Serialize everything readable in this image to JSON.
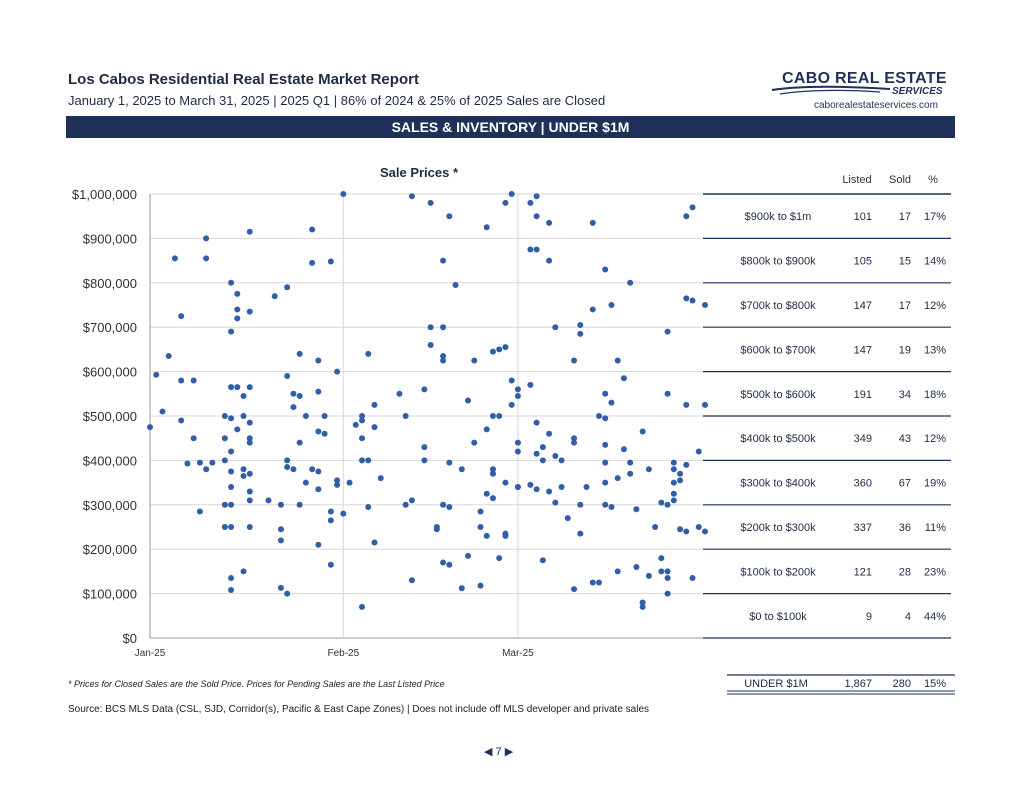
{
  "header": {
    "title": "Los Cabos Residential Real Estate Market Report",
    "subtitle": "January 1, 2025 to March 31, 2025 | 2025 Q1 | 86% of 2024 & 25% of 2025 Sales are Closed",
    "logo_line1": "CABO REAL ESTATE",
    "logo_line2": "SERVICES",
    "logo_url": "caborealestateservices.com",
    "banner": "SALES & INVENTORY | UNDER $1M"
  },
  "colors": {
    "navy": "#1f3158",
    "point": "#2f5fa7",
    "grid": "#d9d9d9"
  },
  "chart_data": {
    "type": "scatter",
    "title": "Sale Prices *",
    "xlabel": "",
    "ylabel": "",
    "x_ticks": [
      {
        "label": "Jan-25",
        "day": 0
      },
      {
        "label": "Feb-25",
        "day": 31
      },
      {
        "label": "Mar-25",
        "day": 59
      }
    ],
    "xlim_days": [
      0,
      89
    ],
    "ylim": [
      0,
      1000000
    ],
    "y_ticks": [
      0,
      100000,
      200000,
      300000,
      400000,
      500000,
      600000,
      700000,
      800000,
      900000,
      1000000
    ],
    "y_tick_labels": [
      "$0",
      "$100,000",
      "$200,000",
      "$300,000",
      "$400,000",
      "$500,000",
      "$600,000",
      "$700,000",
      "$800,000",
      "$900,000",
      "$1,000,000"
    ],
    "grid": true,
    "points": [
      [
        0,
        475000
      ],
      [
        1,
        593000
      ],
      [
        2,
        510000
      ],
      [
        3,
        635000
      ],
      [
        4,
        855000
      ],
      [
        5,
        725000
      ],
      [
        5,
        580000
      ],
      [
        5,
        490000
      ],
      [
        6,
        393000
      ],
      [
        7,
        580000
      ],
      [
        7,
        450000
      ],
      [
        8,
        285000
      ],
      [
        8,
        395000
      ],
      [
        9,
        900000
      ],
      [
        9,
        855000
      ],
      [
        9,
        380000
      ],
      [
        10,
        395000
      ],
      [
        12,
        500000
      ],
      [
        12,
        450000
      ],
      [
        12,
        400000
      ],
      [
        12,
        300000
      ],
      [
        12,
        250000
      ],
      [
        13,
        800000
      ],
      [
        13,
        690000
      ],
      [
        13,
        565000
      ],
      [
        13,
        495000
      ],
      [
        13,
        420000
      ],
      [
        13,
        375000
      ],
      [
        13,
        340000
      ],
      [
        13,
        300000
      ],
      [
        13,
        250000
      ],
      [
        13,
        135000
      ],
      [
        13,
        108000
      ],
      [
        14,
        775000
      ],
      [
        14,
        740000
      ],
      [
        14,
        720000
      ],
      [
        14,
        565000
      ],
      [
        14,
        470000
      ],
      [
        15,
        545000
      ],
      [
        15,
        500000
      ],
      [
        15,
        380000
      ],
      [
        15,
        365000
      ],
      [
        15,
        150000
      ],
      [
        16,
        915000
      ],
      [
        16,
        735000
      ],
      [
        16,
        565000
      ],
      [
        16,
        485000
      ],
      [
        16,
        450000
      ],
      [
        16,
        440000
      ],
      [
        16,
        370000
      ],
      [
        16,
        330000
      ],
      [
        16,
        310000
      ],
      [
        16,
        250000
      ],
      [
        19,
        310000
      ],
      [
        20,
        770000
      ],
      [
        21,
        300000
      ],
      [
        21,
        245000
      ],
      [
        21,
        220000
      ],
      [
        21,
        113000
      ],
      [
        22,
        790000
      ],
      [
        22,
        590000
      ],
      [
        22,
        400000
      ],
      [
        22,
        385000
      ],
      [
        22,
        100000
      ],
      [
        23,
        550000
      ],
      [
        23,
        520000
      ],
      [
        23,
        380000
      ],
      [
        24,
        640000
      ],
      [
        24,
        545000
      ],
      [
        24,
        440000
      ],
      [
        24,
        300000
      ],
      [
        25,
        500000
      ],
      [
        25,
        350000
      ],
      [
        26,
        920000
      ],
      [
        26,
        845000
      ],
      [
        26,
        380000
      ],
      [
        27,
        625000
      ],
      [
        27,
        555000
      ],
      [
        27,
        465000
      ],
      [
        27,
        375000
      ],
      [
        27,
        335000
      ],
      [
        27,
        210000
      ],
      [
        28,
        500000
      ],
      [
        28,
        460000
      ],
      [
        29,
        848000
      ],
      [
        29,
        285000
      ],
      [
        29,
        265000
      ],
      [
        29,
        165000
      ],
      [
        30,
        600000
      ],
      [
        30,
        355000
      ],
      [
        30,
        345000
      ],
      [
        31,
        1000000
      ],
      [
        31,
        280000
      ],
      [
        32,
        350000
      ],
      [
        33,
        480000
      ],
      [
        34,
        500000
      ],
      [
        34,
        490000
      ],
      [
        34,
        450000
      ],
      [
        34,
        400000
      ],
      [
        34,
        70000
      ],
      [
        35,
        640000
      ],
      [
        35,
        400000
      ],
      [
        35,
        295000
      ],
      [
        36,
        525000
      ],
      [
        36,
        475000
      ],
      [
        36,
        215000
      ],
      [
        37,
        360000
      ],
      [
        40,
        550000
      ],
      [
        41,
        500000
      ],
      [
        41,
        300000
      ],
      [
        42,
        995000
      ],
      [
        42,
        310000
      ],
      [
        42,
        130000
      ],
      [
        44,
        430000
      ],
      [
        44,
        400000
      ],
      [
        44,
        560000
      ],
      [
        45,
        980000
      ],
      [
        45,
        700000
      ],
      [
        45,
        660000
      ],
      [
        46,
        245000
      ],
      [
        46,
        250000
      ],
      [
        47,
        850000
      ],
      [
        47,
        700000
      ],
      [
        47,
        635000
      ],
      [
        47,
        625000
      ],
      [
        47,
        300000
      ],
      [
        47,
        170000
      ],
      [
        48,
        950000
      ],
      [
        48,
        395000
      ],
      [
        48,
        295000
      ],
      [
        48,
        165000
      ],
      [
        49,
        795000
      ],
      [
        50,
        380000
      ],
      [
        50,
        112000
      ],
      [
        51,
        535000
      ],
      [
        51,
        185000
      ],
      [
        52,
        625000
      ],
      [
        52,
        440000
      ],
      [
        53,
        285000
      ],
      [
        53,
        250000
      ],
      [
        53,
        118000
      ],
      [
        54,
        925000
      ],
      [
        54,
        470000
      ],
      [
        54,
        325000
      ],
      [
        54,
        230000
      ],
      [
        55,
        645000
      ],
      [
        55,
        500000
      ],
      [
        55,
        380000
      ],
      [
        55,
        370000
      ],
      [
        55,
        315000
      ],
      [
        56,
        650000
      ],
      [
        56,
        500000
      ],
      [
        56,
        180000
      ],
      [
        57,
        980000
      ],
      [
        57,
        655000
      ],
      [
        57,
        350000
      ],
      [
        57,
        235000
      ],
      [
        57,
        230000
      ],
      [
        58,
        1000000
      ],
      [
        58,
        580000
      ],
      [
        58,
        525000
      ],
      [
        59,
        560000
      ],
      [
        59,
        545000
      ],
      [
        59,
        440000
      ],
      [
        59,
        420000
      ],
      [
        59,
        340000
      ],
      [
        59,
        340000
      ],
      [
        61,
        875000
      ],
      [
        61,
        980000
      ],
      [
        61,
        570000
      ],
      [
        61,
        345000
      ],
      [
        62,
        875000
      ],
      [
        62,
        995000
      ],
      [
        62,
        950000
      ],
      [
        62,
        485000
      ],
      [
        62,
        415000
      ],
      [
        62,
        335000
      ],
      [
        63,
        400000
      ],
      [
        63,
        175000
      ],
      [
        63,
        430000
      ],
      [
        64,
        935000
      ],
      [
        64,
        850000
      ],
      [
        64,
        460000
      ],
      [
        64,
        330000
      ],
      [
        65,
        410000
      ],
      [
        65,
        700000
      ],
      [
        65,
        305000
      ],
      [
        66,
        400000
      ],
      [
        66,
        340000
      ],
      [
        67,
        270000
      ],
      [
        68,
        625000
      ],
      [
        68,
        450000
      ],
      [
        68,
        440000
      ],
      [
        68,
        110000
      ],
      [
        69,
        705000
      ],
      [
        69,
        685000
      ],
      [
        69,
        300000
      ],
      [
        69,
        235000
      ],
      [
        70,
        340000
      ],
      [
        71,
        935000
      ],
      [
        71,
        740000
      ],
      [
        71,
        125000
      ],
      [
        72,
        500000
      ],
      [
        72,
        125000
      ],
      [
        73,
        830000
      ],
      [
        73,
        550000
      ],
      [
        73,
        495000
      ],
      [
        73,
        435000
      ],
      [
        73,
        395000
      ],
      [
        73,
        350000
      ],
      [
        73,
        300000
      ],
      [
        74,
        750000
      ],
      [
        74,
        530000
      ],
      [
        74,
        295000
      ],
      [
        75,
        625000
      ],
      [
        75,
        360000
      ],
      [
        75,
        150000
      ],
      [
        76,
        585000
      ],
      [
        76,
        425000
      ],
      [
        77,
        800000
      ],
      [
        77,
        395000
      ],
      [
        77,
        370000
      ],
      [
        78,
        290000
      ],
      [
        78,
        160000
      ],
      [
        79,
        465000
      ],
      [
        79,
        80000
      ],
      [
        79,
        70000
      ],
      [
        80,
        380000
      ],
      [
        80,
        140000
      ],
      [
        81,
        250000
      ],
      [
        82,
        305000
      ],
      [
        82,
        180000
      ],
      [
        82,
        150000
      ],
      [
        83,
        690000
      ],
      [
        83,
        550000
      ],
      [
        83,
        300000
      ],
      [
        83,
        150000
      ],
      [
        83,
        135000
      ],
      [
        83,
        100000
      ],
      [
        84,
        395000
      ],
      [
        84,
        380000
      ],
      [
        84,
        350000
      ],
      [
        84,
        325000
      ],
      [
        84,
        310000
      ],
      [
        85,
        370000
      ],
      [
        85,
        355000
      ],
      [
        85,
        245000
      ],
      [
        86,
        950000
      ],
      [
        86,
        765000
      ],
      [
        86,
        525000
      ],
      [
        86,
        390000
      ],
      [
        86,
        240000
      ],
      [
        87,
        970000
      ],
      [
        87,
        760000
      ],
      [
        87,
        135000
      ],
      [
        88,
        420000
      ],
      [
        88,
        250000
      ],
      [
        89,
        750000
      ],
      [
        89,
        525000
      ],
      [
        89,
        240000
      ]
    ]
  },
  "table": {
    "headers": [
      "Listed",
      "Sold",
      "%"
    ],
    "rows": [
      {
        "range": "$900k to $1m",
        "listed": "101",
        "sold": "17",
        "pct": "17%"
      },
      {
        "range": "$800k to $900k",
        "listed": "105",
        "sold": "15",
        "pct": "14%"
      },
      {
        "range": "$700k to $800k",
        "listed": "147",
        "sold": "17",
        "pct": "12%"
      },
      {
        "range": "$600k to $700k",
        "listed": "147",
        "sold": "19",
        "pct": "13%"
      },
      {
        "range": "$500k to $600k",
        "listed": "191",
        "sold": "34",
        "pct": "18%"
      },
      {
        "range": "$400k to $500k",
        "listed": "349",
        "sold": "43",
        "pct": "12%"
      },
      {
        "range": "$300k to $400k",
        "listed": "360",
        "sold": "67",
        "pct": "19%"
      },
      {
        "range": "$200k to $300k",
        "listed": "337",
        "sold": "36",
        "pct": "11%"
      },
      {
        "range": "$100k to $200k",
        "listed": "121",
        "sold": "28",
        "pct": "23%"
      },
      {
        "range": "$0 to $100k",
        "listed": "9",
        "sold": "4",
        "pct": "44%"
      }
    ],
    "total": {
      "range": "UNDER $1M",
      "listed": "1,867",
      "sold": "280",
      "pct": "15%"
    }
  },
  "footer": {
    "footnote": "* Prices for Closed Sales are the Sold Price.  Prices for Pending Sales are the Last Listed Price",
    "source": "Source:  BCS MLS Data (CSL, SJD, Corridor(s), Pacific & East Cape Zones) | Does not include off MLS developer and private sales",
    "page_number": "7",
    "prev_arrow": "◀",
    "next_arrow": "▶"
  }
}
